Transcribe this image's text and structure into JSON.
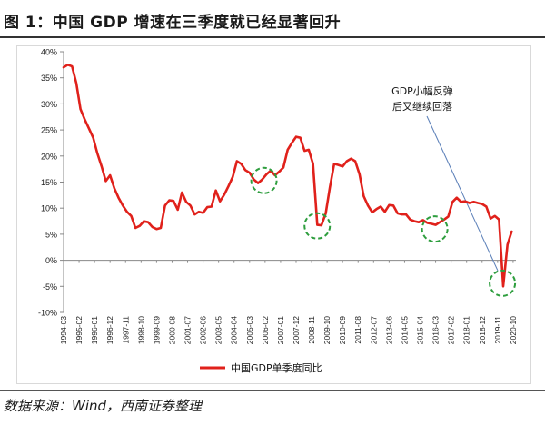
{
  "figure": {
    "title": "图 1：中国 GDP 增速在三季度就已经显著回升",
    "source": "数据来源：Wind，西南证券整理"
  },
  "chart_data": {
    "type": "line",
    "title": "",
    "xlabel": "",
    "ylabel": "",
    "ylim": [
      -10,
      40
    ],
    "y_ticks": [
      -10,
      -5,
      0,
      5,
      10,
      15,
      20,
      25,
      30,
      35,
      40
    ],
    "y_tick_labels": [
      "-10%",
      "-5%",
      "0%",
      "5%",
      "10%",
      "15%",
      "20%",
      "25%",
      "30%",
      "35%",
      "40%"
    ],
    "x_tick_labels": [
      "1994-03",
      "1995-02",
      "1996-01",
      "1996-12",
      "1997-11",
      "1998-10",
      "1999-09",
      "2000-08",
      "2001-07",
      "2002-06",
      "2003-05",
      "2004-04",
      "2005-03",
      "2006-02",
      "2007-01",
      "2007-12",
      "2008-11",
      "2009-10",
      "2010-09",
      "2011-08",
      "2012-07",
      "2013-06",
      "2014-05",
      "2015-04",
      "2016-03",
      "2017-02",
      "2018-01",
      "2018-12",
      "2019-11",
      "2020-10"
    ],
    "grid": false,
    "legend_position": "bottom-center",
    "line_color": "#e0211b",
    "highlight_color": "#2e9e3e",
    "annotation": {
      "lines": [
        "GDP小幅反弹",
        "后又继续回落"
      ]
    },
    "highlights": [
      {
        "x": 2005.85,
        "y": 15.3
      },
      {
        "x": 2009.0,
        "y": 6.6
      },
      {
        "x": 2015.95,
        "y": 6.0
      },
      {
        "x": 2019.95,
        "y": -4.4
      }
    ],
    "series": [
      {
        "name": "中国GDP单季度同比",
        "points": [
          [
            1994.0,
            37.0
          ],
          [
            1994.25,
            37.5
          ],
          [
            1994.5,
            37.2
          ],
          [
            1994.75,
            34.0
          ],
          [
            1995.0,
            29.0
          ],
          [
            1995.25,
            27.0
          ],
          [
            1995.5,
            25.3
          ],
          [
            1995.75,
            23.5
          ],
          [
            1996.0,
            20.5
          ],
          [
            1996.25,
            18.0
          ],
          [
            1996.5,
            15.2
          ],
          [
            1996.75,
            16.3
          ],
          [
            1997.0,
            13.8
          ],
          [
            1997.25,
            12.0
          ],
          [
            1997.5,
            10.5
          ],
          [
            1997.75,
            9.3
          ],
          [
            1998.0,
            8.5
          ],
          [
            1998.25,
            6.2
          ],
          [
            1998.5,
            6.6
          ],
          [
            1998.75,
            7.5
          ],
          [
            1999.0,
            7.3
          ],
          [
            1999.25,
            6.4
          ],
          [
            1999.5,
            6.0
          ],
          [
            1999.75,
            6.2
          ],
          [
            2000.0,
            10.5
          ],
          [
            2000.25,
            11.5
          ],
          [
            2000.5,
            11.4
          ],
          [
            2000.75,
            9.7
          ],
          [
            2001.0,
            13.0
          ],
          [
            2001.25,
            11.2
          ],
          [
            2001.5,
            10.5
          ],
          [
            2001.75,
            8.8
          ],
          [
            2002.0,
            9.3
          ],
          [
            2002.25,
            9.1
          ],
          [
            2002.5,
            10.2
          ],
          [
            2002.75,
            10.3
          ],
          [
            2003.0,
            13.4
          ],
          [
            2003.25,
            11.3
          ],
          [
            2003.5,
            12.6
          ],
          [
            2003.75,
            14.2
          ],
          [
            2004.0,
            16.0
          ],
          [
            2004.25,
            19.0
          ],
          [
            2004.5,
            18.5
          ],
          [
            2004.75,
            17.3
          ],
          [
            2005.0,
            16.8
          ],
          [
            2005.25,
            15.5
          ],
          [
            2005.5,
            14.8
          ],
          [
            2005.75,
            15.5
          ],
          [
            2006.0,
            16.5
          ],
          [
            2006.25,
            17.2
          ],
          [
            2006.5,
            16.3
          ],
          [
            2006.75,
            17.0
          ],
          [
            2007.0,
            17.8
          ],
          [
            2007.25,
            21.2
          ],
          [
            2007.5,
            22.5
          ],
          [
            2007.75,
            23.7
          ],
          [
            2008.0,
            23.5
          ],
          [
            2008.25,
            21.0
          ],
          [
            2008.5,
            21.2
          ],
          [
            2008.75,
            18.5
          ],
          [
            2009.0,
            6.8
          ],
          [
            2009.25,
            6.7
          ],
          [
            2009.5,
            9.0
          ],
          [
            2009.75,
            14.0
          ],
          [
            2010.0,
            18.5
          ],
          [
            2010.25,
            18.3
          ],
          [
            2010.5,
            18.0
          ],
          [
            2010.75,
            19.0
          ],
          [
            2011.0,
            19.5
          ],
          [
            2011.25,
            19.0
          ],
          [
            2011.5,
            16.5
          ],
          [
            2011.75,
            12.3
          ],
          [
            2012.0,
            10.5
          ],
          [
            2012.25,
            9.2
          ],
          [
            2012.5,
            9.8
          ],
          [
            2012.75,
            10.3
          ],
          [
            2013.0,
            9.3
          ],
          [
            2013.25,
            10.6
          ],
          [
            2013.5,
            10.5
          ],
          [
            2013.75,
            9.0
          ],
          [
            2014.0,
            8.8
          ],
          [
            2014.25,
            8.8
          ],
          [
            2014.5,
            7.8
          ],
          [
            2014.75,
            7.5
          ],
          [
            2015.0,
            7.3
          ],
          [
            2015.25,
            7.7
          ],
          [
            2015.5,
            7.2
          ],
          [
            2015.75,
            7.0
          ],
          [
            2016.0,
            6.8
          ],
          [
            2016.25,
            7.3
          ],
          [
            2016.5,
            7.8
          ],
          [
            2016.75,
            8.4
          ],
          [
            2017.0,
            11.2
          ],
          [
            2017.25,
            12.0
          ],
          [
            2017.5,
            11.2
          ],
          [
            2017.75,
            11.3
          ],
          [
            2018.0,
            11.0
          ],
          [
            2018.25,
            11.2
          ],
          [
            2018.5,
            11.0
          ],
          [
            2018.75,
            10.8
          ],
          [
            2019.0,
            10.3
          ],
          [
            2019.25,
            8.0
          ],
          [
            2019.5,
            8.5
          ],
          [
            2019.75,
            7.8
          ],
          [
            2020.0,
            -5.0
          ],
          [
            2020.25,
            3.0
          ],
          [
            2020.5,
            5.5
          ]
        ]
      }
    ]
  }
}
